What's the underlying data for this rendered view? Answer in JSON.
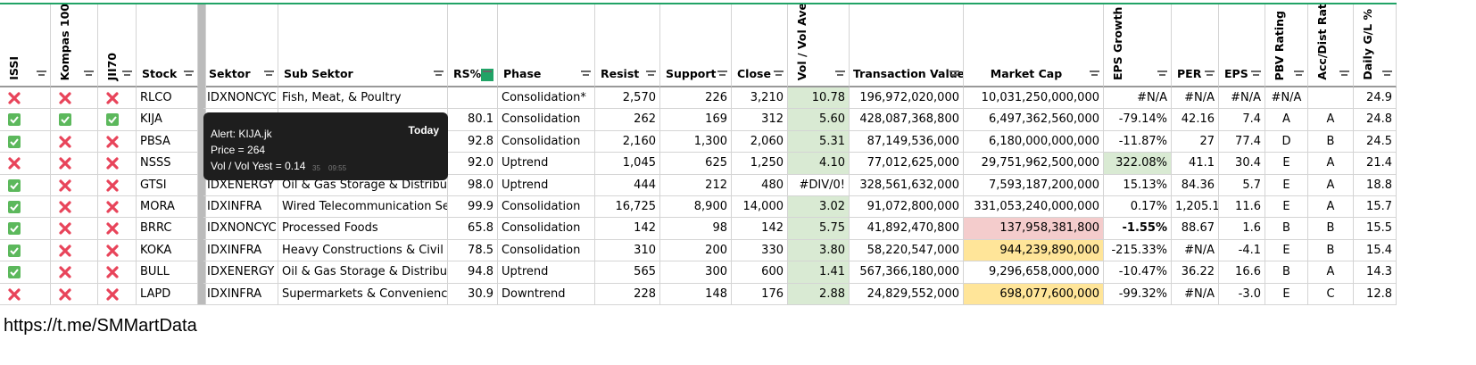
{
  "table": {
    "headers": [
      "ISSI",
      "Kompas 100",
      "JII70",
      "Stock",
      "Sektor",
      "Sub Sektor",
      "RS%",
      "Phase",
      "Resist",
      "Support",
      "Close",
      "Vol / Vol Average",
      "Transaction Value",
      "Market Cap",
      "EPS Growth (TTM)",
      "PER",
      "EPS",
      "PBV Rating",
      "Acc/Dist Rating",
      "Daily G/L %"
    ],
    "rows": [
      [
        false,
        false,
        false,
        "RLCO",
        "IDXNONCYC",
        "Fish, Meat, & Poultry",
        null,
        "Consolidation*",
        "2,570",
        "226",
        "3,210",
        "10.78",
        "196,972,020,000",
        "10,031,250,000,000",
        "#N/A",
        "#N/A",
        "#N/A",
        "#N/A",
        null,
        "24.9"
      ],
      [
        true,
        true,
        true,
        "KIJA",
        null,
        null,
        "80.1",
        "Consolidation",
        "262",
        "169",
        "312",
        "5.60",
        "428,087,368,800",
        "6,497,362,560,000",
        "-79.14%",
        "42.16",
        "7.4",
        "A",
        "A",
        "24.8"
      ],
      [
        true,
        false,
        false,
        "PBSA",
        null,
        null,
        "92.8",
        "Consolidation",
        "2,160",
        "1,300",
        "2,060",
        "5.31",
        "87,149,536,000",
        "6,180,000,000,000",
        "-11.87%",
        "27",
        "77.4",
        "D",
        "B",
        "24.5"
      ],
      [
        false,
        false,
        false,
        "NSSS",
        null,
        null,
        "92.0",
        "Uptrend",
        "1,045",
        "625",
        "1,250",
        "4.10",
        "77,012,625,000",
        "29,751,962,500,000",
        "322.08%",
        "41.1",
        "30.4",
        "E",
        "A",
        "21.4"
      ],
      [
        true,
        false,
        false,
        "GTSI",
        "IDXENERGY",
        "Oil & Gas Storage & Distribut",
        "98.0",
        "Uptrend",
        "444",
        "212",
        "480",
        "#DIV/0!",
        "328,561,632,000",
        "7,593,187,200,000",
        "15.13%",
        "84.36",
        "5.7",
        "E",
        "A",
        "18.8"
      ],
      [
        true,
        false,
        false,
        "MORA",
        "IDXINFRA",
        "Wired Telecommunication Se",
        "99.9",
        "Consolidation",
        "16,725",
        "8,900",
        "14,000",
        "3.02",
        "91,072,800,000",
        "331,053,240,000,000",
        "0.17%",
        "1,205.1",
        "11.6",
        "E",
        "A",
        "15.7"
      ],
      [
        true,
        false,
        false,
        "BRRC",
        "IDXNONCYC",
        "Processed Foods",
        "65.8",
        "Consolidation",
        "142",
        "98",
        "142",
        "5.75",
        "41,892,470,800",
        "137,958,381,800",
        "-1.55%",
        "88.67",
        "1.6",
        "B",
        "B",
        "15.5"
      ],
      [
        true,
        false,
        false,
        "KOKA",
        "IDXINFRA",
        "Heavy Constructions & Civil E",
        "78.5",
        "Consolidation",
        "310",
        "200",
        "330",
        "3.80",
        "58,220,547,000",
        "944,239,890,000",
        "-215.33%",
        "#N/A",
        "-4.1",
        "E",
        "B",
        "15.4"
      ],
      [
        true,
        false,
        false,
        "BULL",
        "IDXENERGY",
        "Oil & Gas Storage & Distribut",
        "94.8",
        "Uptrend",
        "565",
        "300",
        "600",
        "1.41",
        "567,366,180,000",
        "9,296,658,000,000",
        "-10.47%",
        "36.22",
        "16.6",
        "B",
        "A",
        "14.3"
      ],
      [
        false,
        false,
        false,
        "LAPD",
        "IDXINFRA",
        "Supermarkets & Convenience",
        "30.9",
        "Downtrend",
        "228",
        "148",
        "176",
        "2.88",
        "24,829,552,000",
        "698,077,600,000",
        "-99.32%",
        "#N/A",
        "-3.0",
        "E",
        "C",
        "12.8"
      ]
    ]
  },
  "popup": {
    "title": "Alert: KIJA.jk",
    "lines": [
      "Price = 264",
      "Vol / Vol Yest = 0.14"
    ],
    "badge": "Today",
    "views": "35",
    "time": "09:55"
  },
  "footer": "https://t.me/SMMartData"
}
